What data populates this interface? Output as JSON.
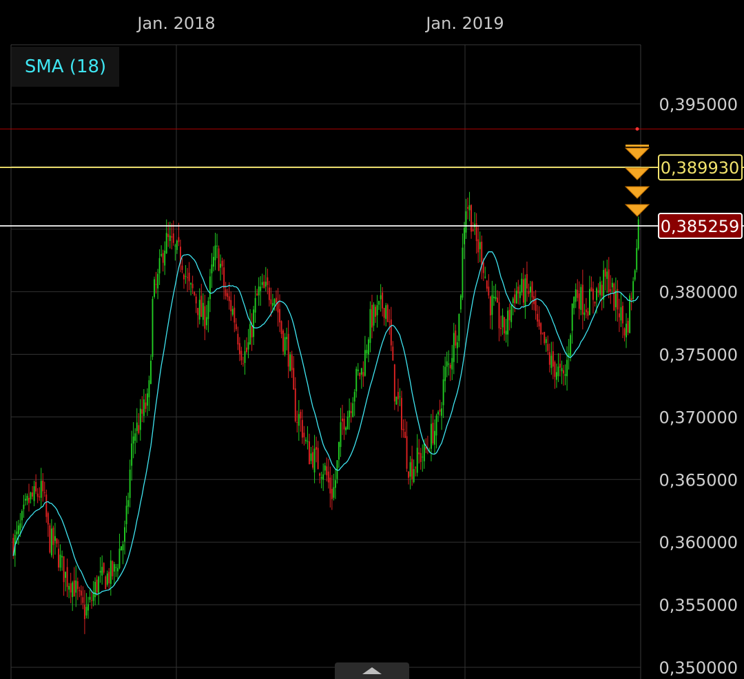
{
  "chart_data": {
    "type": "candlestick",
    "x_ticks": [
      "Jan. 2018",
      "Jan. 2019"
    ],
    "y_ticks": [
      "0,395000",
      "0,380000",
      "0,375000",
      "0,370000",
      "0,365000",
      "0,360000",
      "0,355000",
      "0,350000"
    ],
    "y_tick_values": [
      0.395,
      0.38,
      0.375,
      0.37,
      0.365,
      0.36,
      0.355,
      0.35
    ],
    "ylim": [
      0.35,
      0.4
    ],
    "grid": true,
    "indicator": {
      "label": "SMA (18)",
      "color": "#3fe6f2"
    },
    "candle_colors": {
      "up": "#22cc22",
      "down": "#dd2222"
    },
    "price_keypoints": [
      {
        "t": 0,
        "p": 0.36
      },
      {
        "t": 0.03,
        "p": 0.3635
      },
      {
        "t": 0.045,
        "p": 0.364
      },
      {
        "t": 0.06,
        "p": 0.36
      },
      {
        "t": 0.09,
        "p": 0.357
      },
      {
        "t": 0.115,
        "p": 0.3545
      },
      {
        "t": 0.14,
        "p": 0.357
      },
      {
        "t": 0.16,
        "p": 0.3575
      },
      {
        "t": 0.175,
        "p": 0.36
      },
      {
        "t": 0.195,
        "p": 0.369
      },
      {
        "t": 0.215,
        "p": 0.371
      },
      {
        "t": 0.225,
        "p": 0.38
      },
      {
        "t": 0.245,
        "p": 0.384
      },
      {
        "t": 0.265,
        "p": 0.383
      },
      {
        "t": 0.285,
        "p": 0.38
      },
      {
        "t": 0.305,
        "p": 0.378
      },
      {
        "t": 0.325,
        "p": 0.383
      },
      {
        "t": 0.345,
        "p": 0.379
      },
      {
        "t": 0.37,
        "p": 0.375
      },
      {
        "t": 0.395,
        "p": 0.38
      },
      {
        "t": 0.415,
        "p": 0.38
      },
      {
        "t": 0.435,
        "p": 0.376
      },
      {
        "t": 0.455,
        "p": 0.37
      },
      {
        "t": 0.475,
        "p": 0.367
      },
      {
        "t": 0.495,
        "p": 0.366
      },
      {
        "t": 0.51,
        "p": 0.364
      },
      {
        "t": 0.53,
        "p": 0.37
      },
      {
        "t": 0.555,
        "p": 0.3735
      },
      {
        "t": 0.575,
        "p": 0.378
      },
      {
        "t": 0.595,
        "p": 0.379
      },
      {
        "t": 0.615,
        "p": 0.371
      },
      {
        "t": 0.635,
        "p": 0.366
      },
      {
        "t": 0.655,
        "p": 0.367
      },
      {
        "t": 0.675,
        "p": 0.369
      },
      {
        "t": 0.695,
        "p": 0.374
      },
      {
        "t": 0.71,
        "p": 0.377
      },
      {
        "t": 0.725,
        "p": 0.387
      },
      {
        "t": 0.745,
        "p": 0.3835
      },
      {
        "t": 0.765,
        "p": 0.379
      },
      {
        "t": 0.785,
        "p": 0.377
      },
      {
        "t": 0.805,
        "p": 0.38
      },
      {
        "t": 0.825,
        "p": 0.38
      },
      {
        "t": 0.845,
        "p": 0.376
      },
      {
        "t": 0.865,
        "p": 0.374
      },
      {
        "t": 0.88,
        "p": 0.373
      },
      {
        "t": 0.9,
        "p": 0.38
      },
      {
        "t": 0.915,
        "p": 0.379
      },
      {
        "t": 0.935,
        "p": 0.38
      },
      {
        "t": 0.95,
        "p": 0.381
      },
      {
        "t": 0.965,
        "p": 0.379
      },
      {
        "t": 0.98,
        "p": 0.377
      },
      {
        "t": 0.99,
        "p": 0.38
      },
      {
        "t": 1.0,
        "p": 0.3855
      }
    ],
    "horizontal_lines": [
      {
        "value": 0.393,
        "color": "#b00000",
        "label": ""
      },
      {
        "value": 0.38993,
        "color": "#f2e36c",
        "label": "0,389930",
        "badge_bg": "#000000",
        "badge_border": "#f2e36c",
        "badge_text_color": "#f2e36c"
      },
      {
        "value": 0.385259,
        "color": "#ffffff",
        "label": "0,385259",
        "badge_bg": "#8a0000",
        "badge_border": "#ffffff",
        "badge_text_color": "#ffffff"
      }
    ],
    "markers": {
      "type": "sell-signal-triangle",
      "color": "#f5a623",
      "count": 4
    }
  }
}
